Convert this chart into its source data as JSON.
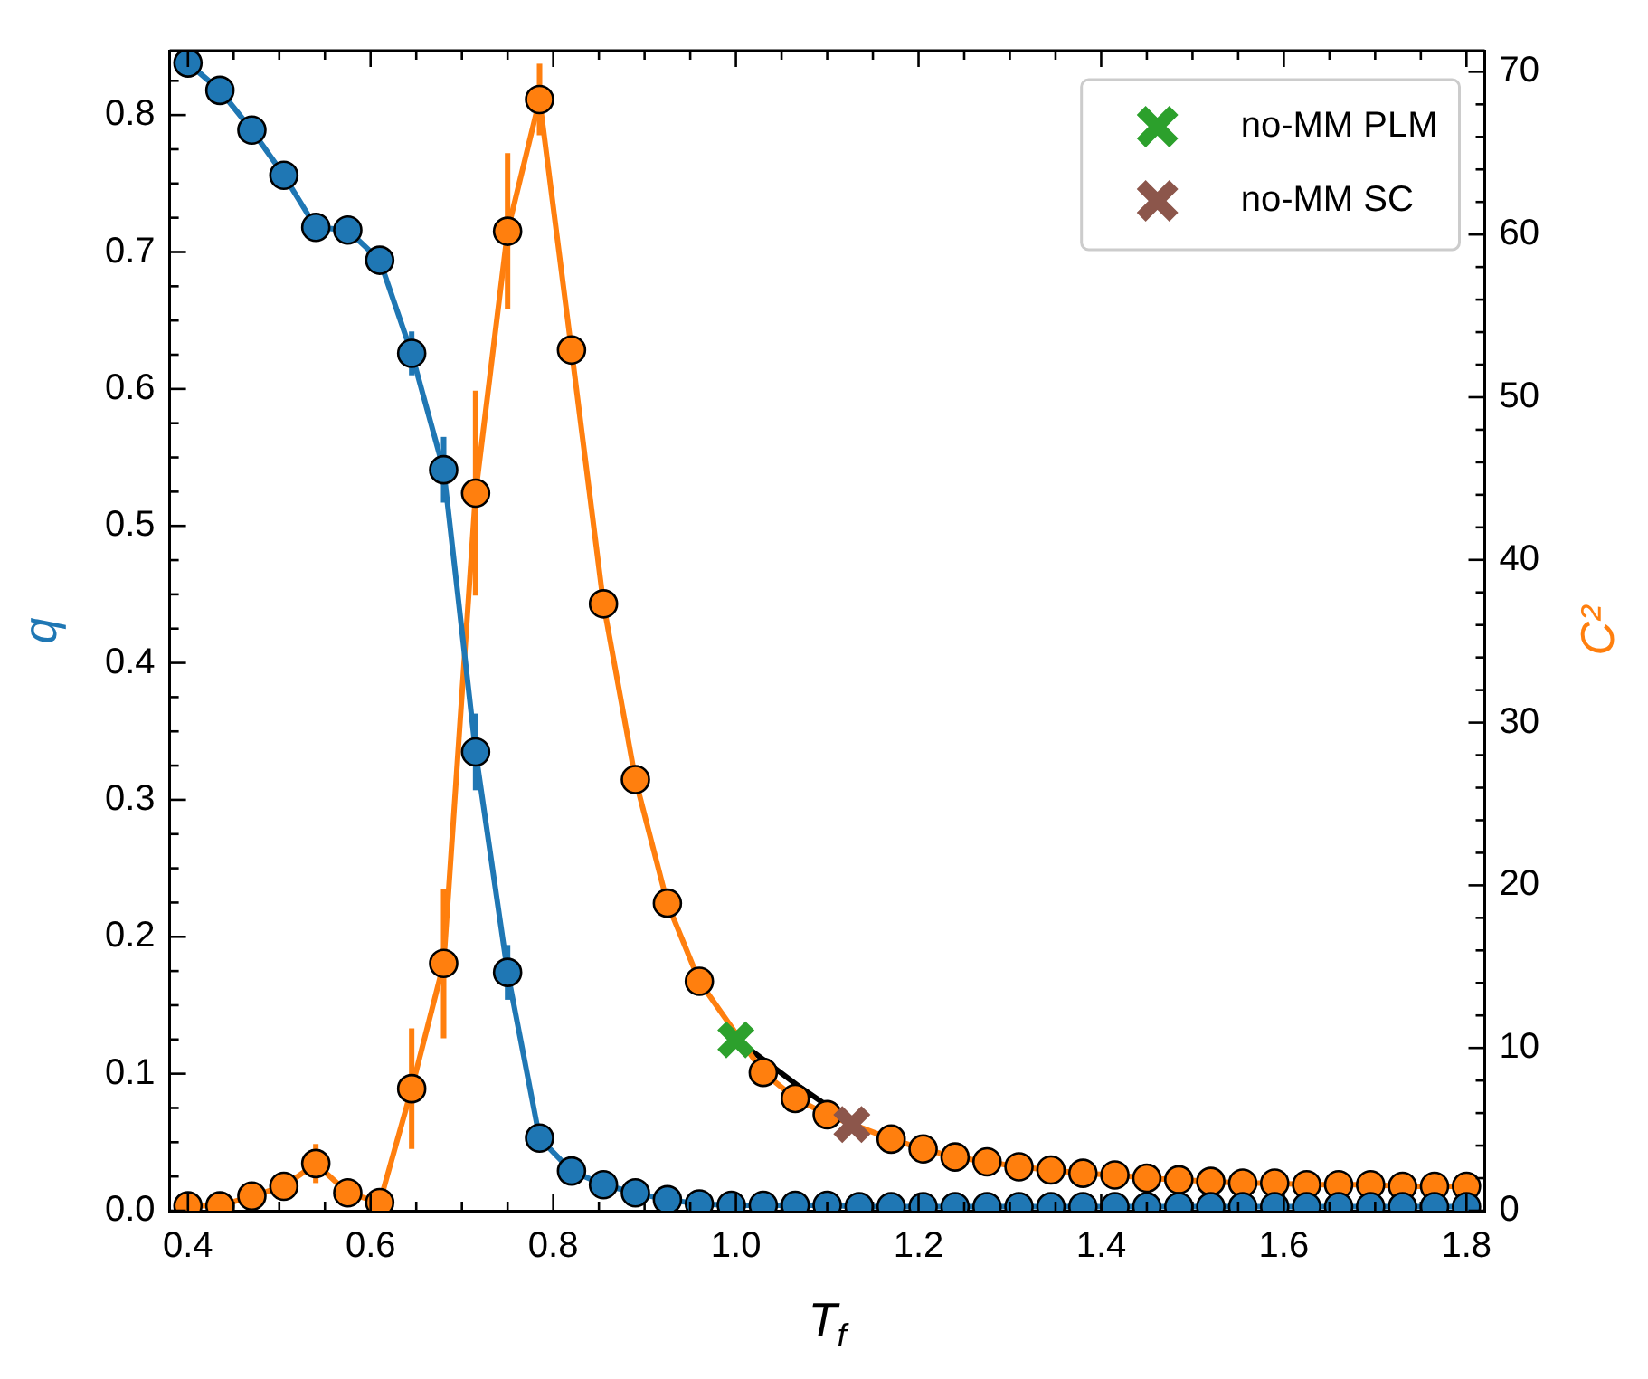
{
  "chart_data": {
    "type": "line",
    "xlabel": "T$_{f}$",
    "ylabel": "q",
    "y2label": "C²",
    "x": [
      0.4,
      0.435,
      0.47,
      0.505,
      0.54,
      0.575,
      0.61,
      0.645,
      0.68,
      0.715,
      0.75,
      0.785,
      0.82,
      0.855,
      0.89,
      0.925,
      0.96,
      0.995,
      1.03,
      1.065,
      1.1,
      1.135,
      1.17,
      1.205,
      1.24,
      1.275,
      1.31,
      1.345,
      1.38,
      1.415,
      1.45,
      1.485,
      1.52,
      1.555,
      1.59,
      1.625,
      1.66,
      1.695,
      1.73,
      1.765,
      1.8
    ],
    "series": [
      {
        "color": "#1f77b4",
        "axis": "y",
        "values": [
          0.838,
          0.818,
          0.789,
          0.756,
          0.718,
          0.716,
          0.694,
          0.626,
          0.541,
          0.335,
          0.174,
          0.053,
          0.029,
          0.019,
          0.013,
          0.008,
          0.005,
          0.004,
          0.004,
          0.004,
          0.004,
          0.003,
          0.003,
          0.003,
          0.003,
          0.003,
          0.003,
          0.003,
          0.003,
          0.003,
          0.003,
          0.003,
          0.003,
          0.003,
          0.003,
          0.003,
          0.003,
          0.003,
          0.003,
          0.003,
          0.003
        ],
        "errors": [
          null,
          null,
          null,
          null,
          null,
          null,
          null,
          0.016,
          0.024,
          0.028,
          0.02,
          null,
          null,
          null,
          null,
          null,
          null,
          null,
          null,
          null,
          null,
          null,
          null,
          null,
          null,
          null,
          null,
          null,
          null,
          null,
          null,
          null,
          null,
          null,
          null,
          null,
          null,
          null,
          null,
          null,
          null
        ]
      },
      {
        "color": "#ff7f0e",
        "axis": "y2",
        "values": [
          0.3,
          0.3,
          0.9,
          1.5,
          2.9,
          1.1,
          0.5,
          7.5,
          15.2,
          44.1,
          60.2,
          68.3,
          52.9,
          37.3,
          26.5,
          18.9,
          14.1,
          null,
          8.5,
          6.9,
          5.9,
          null,
          4.4,
          3.8,
          3.3,
          3.0,
          2.7,
          2.5,
          2.3,
          2.2,
          2.0,
          1.9,
          1.8,
          1.7,
          1.7,
          1.6,
          1.6,
          1.6,
          1.5,
          1.5,
          1.5
        ],
        "errors": [
          null,
          null,
          null,
          null,
          1.2,
          null,
          null,
          3.7,
          4.6,
          6.3,
          4.8,
          2.2,
          null,
          null,
          null,
          null,
          null,
          null,
          null,
          null,
          null,
          null,
          null,
          null,
          null,
          null,
          null,
          null,
          null,
          null,
          null,
          null,
          null,
          null,
          null,
          null,
          null,
          null,
          null,
          null,
          null
        ]
      },
      {
        "type": "line",
        "color": "#000000",
        "axis": "y2",
        "marker": "none",
        "x": [
          1.018,
          1.07,
          1.112
        ],
        "values": [
          9.8,
          7.6,
          6.0
        ]
      },
      {
        "type": "scatter",
        "name": "no-MM PLM",
        "color": "#2ca02c",
        "axis": "y2",
        "marker": "cross",
        "x": [
          1.0
        ],
        "values": [
          10.5
        ]
      },
      {
        "type": "scatter",
        "name": "no-MM SC",
        "color": "#8c564b",
        "axis": "y2",
        "marker": "cross",
        "x": [
          1.127
        ],
        "values": [
          5.3
        ]
      }
    ],
    "xlim": [
      0.38,
      1.82
    ],
    "xticks": [
      0.4,
      0.6,
      0.8,
      {
        "value": 1,
        "label": "1.0"
      },
      1.2,
      1.4,
      1.6,
      1.8
    ],
    "ylim": [
      0,
      0.847
    ],
    "yticks": [
      {
        "value": 0,
        "label": "0.0"
      },
      0.1,
      0.2,
      0.3,
      0.4,
      0.5,
      0.6,
      0.7,
      0.8
    ],
    "y2lim": [
      0,
      71.3
    ],
    "y2ticks": [
      0,
      10,
      20,
      30,
      40,
      50,
      60,
      70
    ],
    "marker": "circle",
    "line_style": "solid",
    "grid": false,
    "legend": "top right"
  }
}
